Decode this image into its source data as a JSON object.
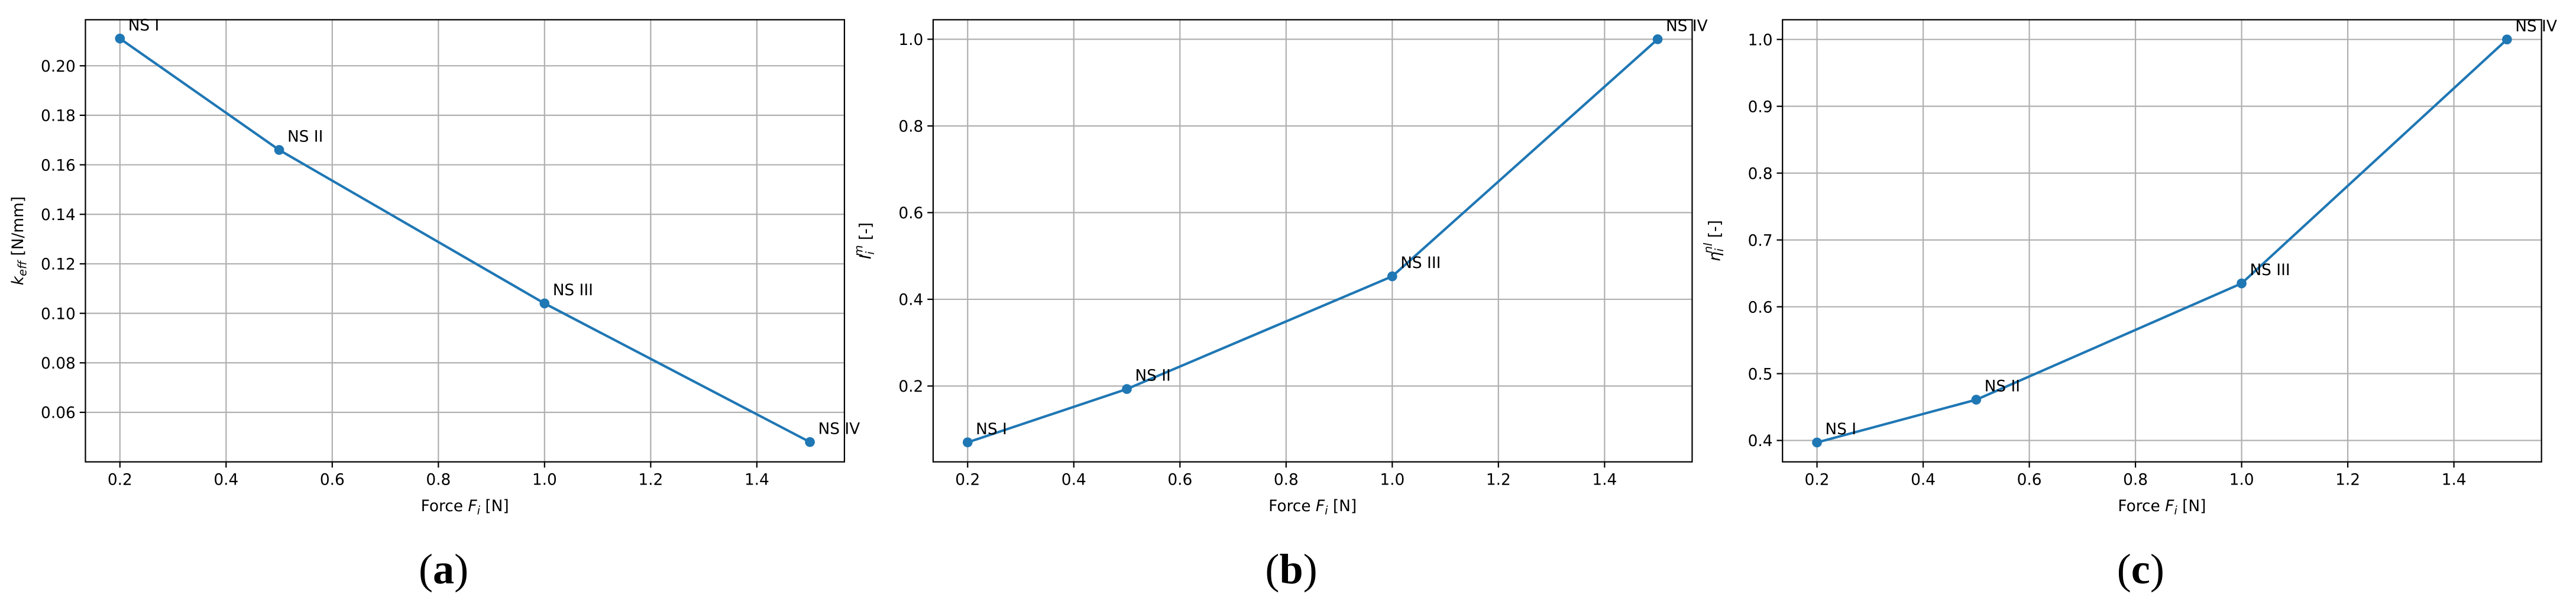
{
  "chart_data": [
    {
      "type": "line",
      "caption": {
        "open": "(",
        "letter": "a",
        "close": ")"
      },
      "xlabel": {
        "pre": "Force ",
        "var": "F",
        "sub": "i",
        "post": " [N]"
      },
      "ylabel": {
        "base": "k",
        "sub": "eff",
        "unit": " [N/mm]"
      },
      "x": [
        0.2,
        0.5,
        1.0,
        1.5
      ],
      "values": [
        0.211,
        0.166,
        0.104,
        0.048
      ],
      "point_labels": [
        "NS I",
        "NS II",
        "NS III",
        "NS IV"
      ],
      "color": "#1f77b4",
      "xlim": [
        0.135,
        1.565
      ],
      "ylim": [
        0.04,
        0.2186
      ],
      "xticks": [
        0.2,
        0.4,
        0.6,
        0.8,
        {
          "value": 1.0,
          "label": "1.0"
        },
        1.2,
        1.4
      ],
      "yticks": [
        {
          "value": 0.06,
          "label": "0.06"
        },
        {
          "value": 0.08,
          "label": "0.08"
        },
        {
          "value": 0.1,
          "label": "0.10"
        },
        0.12,
        0.14,
        0.16,
        0.18,
        {
          "value": 0.2,
          "label": "0.20"
        }
      ],
      "grid": true
    },
    {
      "type": "line",
      "caption": {
        "open": "(",
        "letter": "b",
        "close": ")"
      },
      "xlabel": {
        "pre": "Force ",
        "var": "F",
        "sub": "i",
        "post": " [N]"
      },
      "ylabel": {
        "base": "I",
        "sub": "i",
        "sup": "m",
        "unit": " [-]"
      },
      "x": [
        0.2,
        0.5,
        1.0,
        1.5
      ],
      "values": [
        0.07,
        0.193,
        0.453,
        1.0
      ],
      "point_labels": [
        "NS I",
        "NS II",
        "NS III",
        "NS IV"
      ],
      "color": "#1f77b4",
      "xlim": [
        0.135,
        1.565
      ],
      "ylim": [
        0.025,
        1.045
      ],
      "xticks": [
        0.2,
        0.4,
        0.6,
        0.8,
        {
          "value": 1.0,
          "label": "1.0"
        },
        1.2,
        1.4
      ],
      "yticks": [
        0.2,
        0.4,
        0.6,
        0.8,
        {
          "value": 1.0,
          "label": "1.0"
        }
      ],
      "grid": true
    },
    {
      "type": "line",
      "caption": {
        "open": "(",
        "letter": "c",
        "close": ")"
      },
      "xlabel": {
        "pre": "Force ",
        "var": "F",
        "sub": "i",
        "post": " [N]"
      },
      "ylabel": {
        "base": "η",
        "sub": "i",
        "sup": "nl",
        "unit": " [-]"
      },
      "x": [
        0.2,
        0.5,
        1.0,
        1.5
      ],
      "values": [
        0.397,
        0.461,
        0.635,
        1.0
      ],
      "point_labels": [
        "NS I",
        "NS II",
        "NS III",
        "NS IV"
      ],
      "color": "#1f77b4",
      "xlim": [
        0.135,
        1.565
      ],
      "ylim": [
        0.368,
        1.0295
      ],
      "xticks": [
        0.2,
        0.4,
        0.6,
        0.8,
        {
          "value": 1.0,
          "label": "1.0"
        },
        1.2,
        1.4
      ],
      "yticks": [
        0.4,
        0.5,
        0.6,
        0.7,
        0.8,
        0.9,
        {
          "value": 1.0,
          "label": "1.0"
        }
      ],
      "grid": true
    }
  ]
}
